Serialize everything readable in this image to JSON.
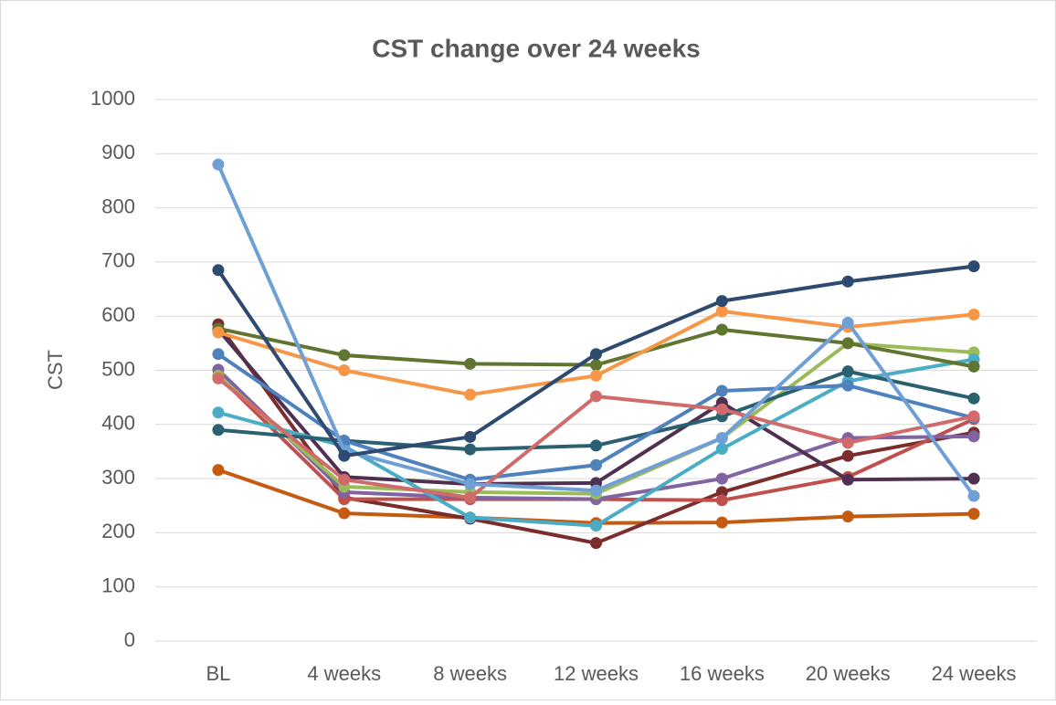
{
  "chart_data": {
    "type": "line",
    "title": "CST change over 24 weeks",
    "y_label": "CST",
    "categories": [
      "BL",
      "4 weeks",
      "8 weeks",
      "12 weeks",
      "16 weeks",
      "20 weeks",
      "24 weeks"
    ],
    "ylim": [
      0,
      1000
    ],
    "yticks": [
      0,
      100,
      200,
      300,
      400,
      500,
      600,
      700,
      800,
      900,
      1000
    ],
    "grid": true,
    "series": [
      {
        "color": "#c55a11",
        "values": [
          316,
          236,
          228,
          218,
          219,
          230,
          235
        ]
      },
      {
        "color": "#7b2c2c",
        "values": [
          585,
          265,
          226,
          181,
          275,
          342,
          385
        ]
      },
      {
        "color": "#c0504d",
        "values": [
          490,
          262,
          262,
          262,
          260,
          303,
          410
        ]
      },
      {
        "color": "#8064a2",
        "values": [
          501,
          275,
          265,
          262,
          300,
          375,
          378
        ]
      },
      {
        "color": "#4f3050",
        "values": [
          575,
          303,
          290,
          292,
          440,
          298,
          300
        ]
      },
      {
        "color": "#9bbb59",
        "values": [
          490,
          285,
          275,
          272,
          375,
          550,
          533
        ]
      },
      {
        "color": "#4bacc6",
        "values": [
          422,
          360,
          228,
          213,
          355,
          480,
          520
        ]
      },
      {
        "color": "#2a6070",
        "values": [
          390,
          370,
          354,
          361,
          415,
          498,
          448
        ]
      },
      {
        "color": "#4f81bd",
        "values": [
          530,
          370,
          298,
          325,
          462,
          472,
          412
        ]
      },
      {
        "color": "#d16b6b",
        "values": [
          485,
          298,
          265,
          452,
          428,
          366,
          415
        ]
      },
      {
        "color": "#5f7530",
        "values": [
          577,
          528,
          512,
          510,
          575,
          550,
          507
        ]
      },
      {
        "color": "#f79646",
        "values": [
          570,
          500,
          455,
          490,
          609,
          580,
          603
        ]
      },
      {
        "color": "#6f9fd4",
        "values": [
          880,
          352,
          290,
          278,
          375,
          588,
          268
        ]
      },
      {
        "color": "#2e4a70",
        "values": [
          685,
          342,
          377,
          530,
          628,
          664,
          692
        ]
      }
    ]
  }
}
